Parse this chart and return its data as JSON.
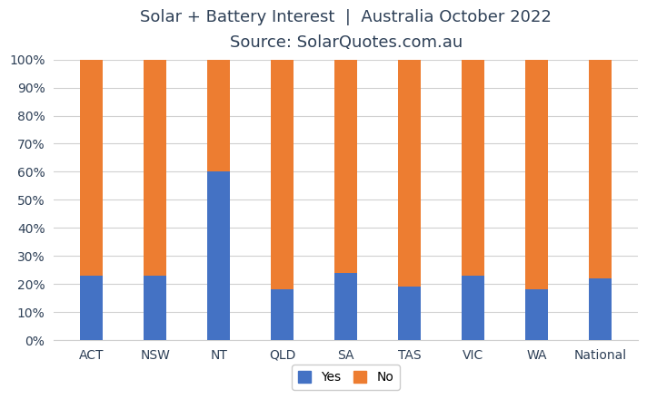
{
  "categories": [
    "ACT",
    "NSW",
    "NT",
    "QLD",
    "SA",
    "TAS",
    "VIC",
    "WA",
    "National"
  ],
  "yes_values": [
    23,
    23,
    60,
    18,
    24,
    19,
    23,
    18,
    22
  ],
  "no_values": [
    77,
    77,
    40,
    82,
    76,
    81,
    77,
    82,
    78
  ],
  "yes_color": "#4472C4",
  "no_color": "#ED7D31",
  "title_line1": "Solar + Battery Interest  |  Australia October 2022",
  "title_line2": "Source: SolarQuotes.com.au",
  "title_color": "#2E4057",
  "ylabel_ticks": [
    "0%",
    "10%",
    "20%",
    "30%",
    "40%",
    "50%",
    "60%",
    "70%",
    "80%",
    "90%",
    "100%"
  ],
  "ytick_values": [
    0,
    10,
    20,
    30,
    40,
    50,
    60,
    70,
    80,
    90,
    100
  ],
  "ylim": [
    0,
    100
  ],
  "legend_labels": [
    "Yes",
    "No"
  ],
  "background_color": "#ffffff",
  "grid_color": "#d0d0d0",
  "bar_width": 0.35,
  "title_fontsize": 13,
  "tick_fontsize": 10,
  "legend_fontsize": 10
}
